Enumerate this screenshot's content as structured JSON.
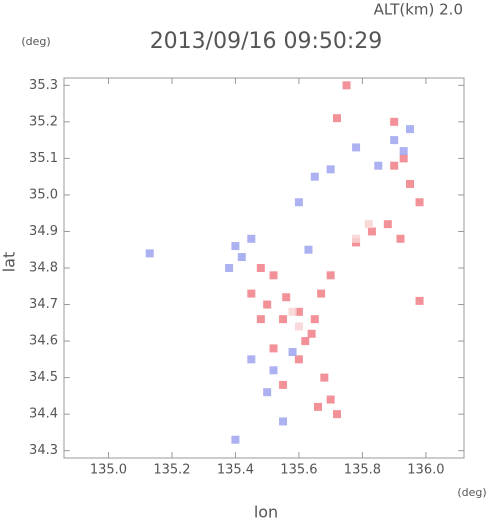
{
  "chart_data": {
    "type": "scatter",
    "title": "2013/09/16 09:50:29",
    "subtitle": "ALT(km) 2.0",
    "x_label": "lon",
    "y_label": "lat",
    "x_unit": "(deg)",
    "y_unit": "(deg)",
    "xlim": [
      134.86,
      136.12
    ],
    "ylim": [
      34.28,
      35.32
    ],
    "xticks": [
      {
        "value": 135.0,
        "label": "135.0"
      },
      135.2,
      135.4,
      135.6,
      135.8,
      {
        "value": 136.0,
        "label": "136.0"
      }
    ],
    "yticks": [
      34.3,
      34.4,
      34.5,
      34.6,
      34.7,
      34.8,
      34.9,
      {
        "value": 35.0,
        "label": "35.0"
      },
      35.1,
      35.2,
      35.3
    ],
    "series": [
      {
        "color": "#f07f86",
        "x": [
          135.75,
          135.72,
          135.9,
          135.93,
          135.95,
          135.98,
          135.9,
          135.83,
          135.88,
          135.92,
          135.78,
          135.52,
          135.48,
          135.45,
          135.5,
          135.55,
          135.6,
          135.65,
          135.48,
          135.52,
          135.6,
          135.62,
          135.68,
          135.7,
          135.72,
          135.66,
          135.55,
          135.67,
          135.7,
          135.98,
          135.64,
          135.56
        ],
        "values": [
          35.3,
          35.21,
          35.2,
          35.1,
          35.03,
          34.98,
          35.08,
          34.9,
          34.92,
          34.88,
          34.87,
          34.78,
          34.8,
          34.73,
          34.7,
          34.66,
          34.68,
          34.66,
          34.66,
          34.58,
          34.55,
          34.6,
          34.5,
          34.44,
          34.4,
          34.42,
          34.48,
          34.73,
          34.78,
          34.71,
          34.62,
          34.72
        ]
      },
      {
        "color": "#9ea3ee",
        "x": [
          135.93,
          135.9,
          135.78,
          135.7,
          135.65,
          135.6,
          135.45,
          135.42,
          135.4,
          135.38,
          135.13,
          135.45,
          135.58,
          135.52,
          135.5,
          135.55,
          135.4,
          135.63,
          135.85,
          135.95
        ],
        "values": [
          35.12,
          35.15,
          35.13,
          35.07,
          35.05,
          34.98,
          34.88,
          34.83,
          34.86,
          34.8,
          34.84,
          34.55,
          34.57,
          34.52,
          34.46,
          34.38,
          34.33,
          34.85,
          35.08,
          35.18
        ]
      },
      {
        "color": "#f8d3d3",
        "x": [
          135.78,
          135.82,
          135.6,
          135.58
        ],
        "values": [
          34.88,
          34.92,
          34.64,
          34.68
        ]
      }
    ]
  }
}
